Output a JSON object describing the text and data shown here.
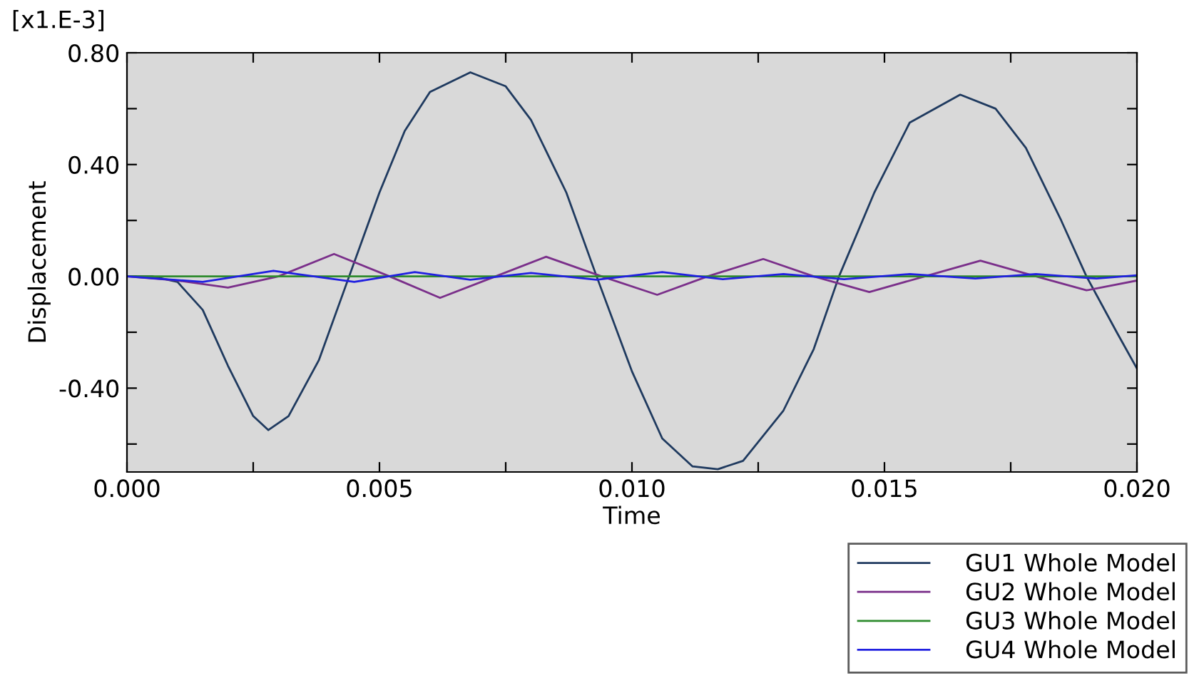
{
  "chart_data": {
    "type": "line",
    "xlabel": "Time",
    "ylabel": "Displacement",
    "annotations": [
      "[x1.E-3]"
    ],
    "xlim": [
      0,
      0.02
    ],
    "ylim": [
      -0.7,
      0.8
    ],
    "xticks": [
      {
        "value": 0,
        "label": "0.000"
      },
      {
        "value": 0.0025,
        "label": null
      },
      {
        "value": 0.005,
        "label": "0.005"
      },
      {
        "value": 0.0075,
        "label": null
      },
      {
        "value": 0.01,
        "label": "0.010"
      },
      {
        "value": 0.0125,
        "label": null
      },
      {
        "value": 0.015,
        "label": "0.015"
      },
      {
        "value": 0.0175,
        "label": null
      },
      {
        "value": 0.02,
        "label": "0.020"
      }
    ],
    "yticks": [
      {
        "value": -0.6,
        "label": null
      },
      {
        "value": -0.4,
        "label": "-0.40"
      },
      {
        "value": -0.2,
        "label": null
      },
      {
        "value": 0,
        "label": "0.00"
      },
      {
        "value": 0.2,
        "label": null
      },
      {
        "value": 0.4,
        "label": "0.40"
      },
      {
        "value": 0.6,
        "label": null
      },
      {
        "value": 0.8,
        "label": "0.80"
      }
    ],
    "grid": false,
    "legend": "bottom right",
    "marker": "none",
    "line_style": "solid",
    "series": [
      {
        "name": "GU1 Whole Model",
        "color": "#1f3a5f",
        "x": [
          0,
          0.0005,
          0.001,
          0.0015,
          0.002,
          0.0025,
          0.0028,
          0.0032,
          0.0038,
          0.0044,
          0.005,
          0.0055,
          0.006,
          0.0068,
          0.0075,
          0.008,
          0.0087,
          0.0093,
          0.01,
          0.0106,
          0.0112,
          0.0117,
          0.0122,
          0.013,
          0.0136,
          0.0141,
          0.0148,
          0.0155,
          0.0165,
          0.0172,
          0.0178,
          0.0185,
          0.019,
          0.0196,
          0.02
        ],
        "values": [
          0,
          0,
          -0.02,
          -0.12,
          -0.32,
          -0.5,
          -0.55,
          -0.5,
          -0.3,
          0,
          0.3,
          0.52,
          0.66,
          0.73,
          0.68,
          0.56,
          0.3,
          0,
          -0.34,
          -0.58,
          -0.68,
          -0.69,
          -0.66,
          -0.48,
          -0.26,
          0,
          0.3,
          0.55,
          0.65,
          0.6,
          0.46,
          0.2,
          0,
          -0.2,
          -0.33
        ]
      },
      {
        "name": "GU2 Whole Model",
        "color": "#7a2f8a",
        "x": [
          0,
          0.001,
          0.002,
          0.003,
          0.0041,
          0.0052,
          0.0062,
          0.0073,
          0.0083,
          0.0094,
          0.0105,
          0.0115,
          0.0126,
          0.0136,
          0.0147,
          0.0158,
          0.0169,
          0.018,
          0.019,
          0.02
        ],
        "values": [
          0,
          -0.015,
          -0.04,
          0,
          0.08,
          0,
          -0.077,
          0,
          0.07,
          0,
          -0.066,
          0,
          0.062,
          0,
          -0.056,
          0,
          0.056,
          0,
          -0.05,
          -0.015
        ]
      },
      {
        "name": "GU3 Whole Model",
        "color": "#2e8b2e",
        "x": [
          0,
          0.02
        ],
        "values": [
          0,
          0
        ]
      },
      {
        "name": "GU4 Whole Model",
        "color": "#2020e0",
        "x": [
          0,
          0.0015,
          0.0029,
          0.0045,
          0.0057,
          0.0068,
          0.008,
          0.0093,
          0.0106,
          0.0118,
          0.013,
          0.0142,
          0.0155,
          0.0168,
          0.018,
          0.0192,
          0.02
        ],
        "values": [
          0,
          -0.02,
          0.02,
          -0.02,
          0.015,
          -0.012,
          0.012,
          -0.012,
          0.015,
          -0.01,
          0.008,
          -0.01,
          0.008,
          -0.008,
          0.008,
          -0.008,
          0.004
        ]
      }
    ]
  }
}
